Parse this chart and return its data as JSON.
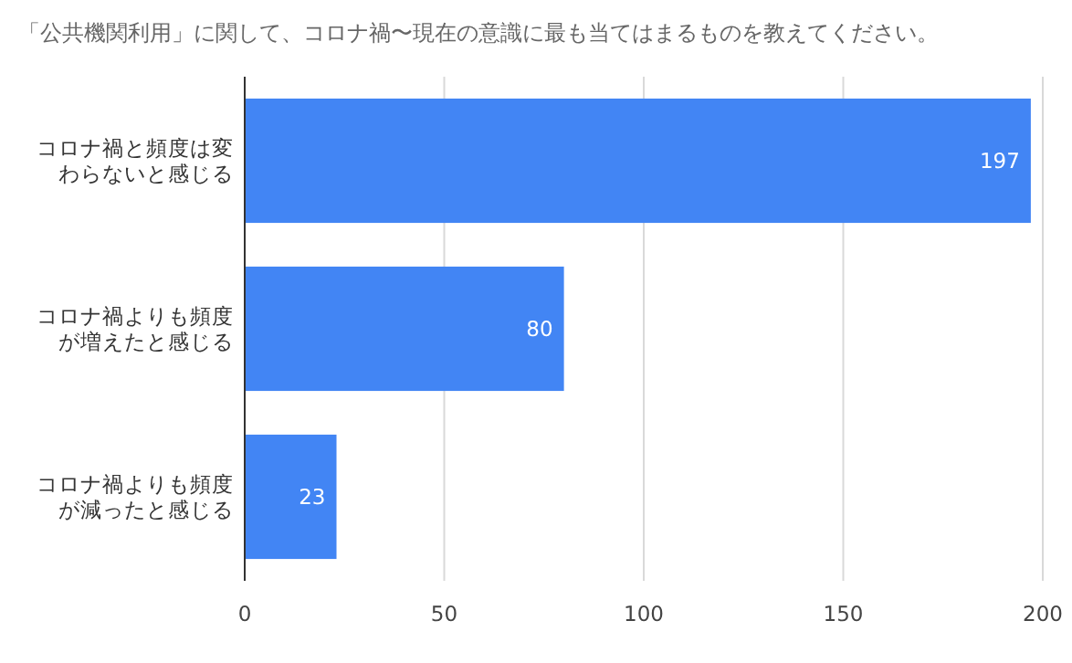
{
  "chart_data": {
    "type": "bar",
    "orientation": "horizontal",
    "title": "「公共機関利用」に関して、コロナ禍〜現在の意識に最も当てはまるものを教えてください。",
    "categories": [
      "コロナ禍と頻度は変わらないと感じる",
      "コロナ禍よりも頻度が増えたと感じる",
      "コロナ禍よりも頻度が減ったと感じる"
    ],
    "values": [
      197,
      80,
      23
    ],
    "color": "#4285f4",
    "xlim": [
      0,
      200
    ],
    "xticks": [
      0,
      50,
      100,
      150,
      200
    ],
    "grid": "x",
    "data_labels": true
  }
}
